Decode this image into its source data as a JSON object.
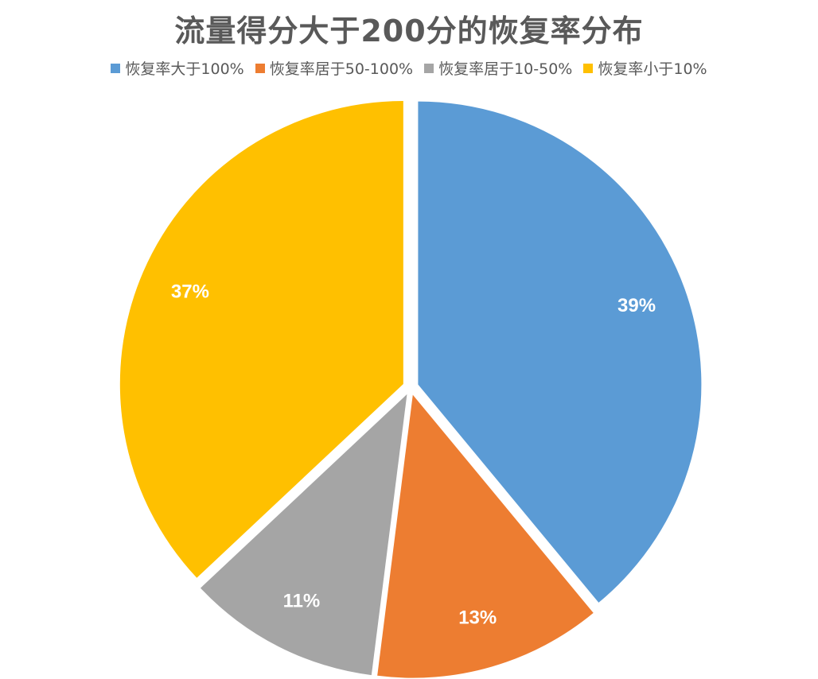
{
  "chart_data": {
    "type": "pie",
    "title": "流量得分大于200分的恢复率分布",
    "legend_position": "top",
    "categories": [
      "恢复率大于100%",
      "恢复率居于50-100%",
      "恢复率居于10-50%",
      "恢复率小于10%"
    ],
    "values": [
      39,
      13,
      11,
      37
    ],
    "data_labels": [
      "39%",
      "13%",
      "11%",
      "37%"
    ],
    "colors": [
      "#5B9BD5",
      "#ED7D31",
      "#A5A5A5",
      "#FFC000"
    ],
    "exploded": true
  }
}
